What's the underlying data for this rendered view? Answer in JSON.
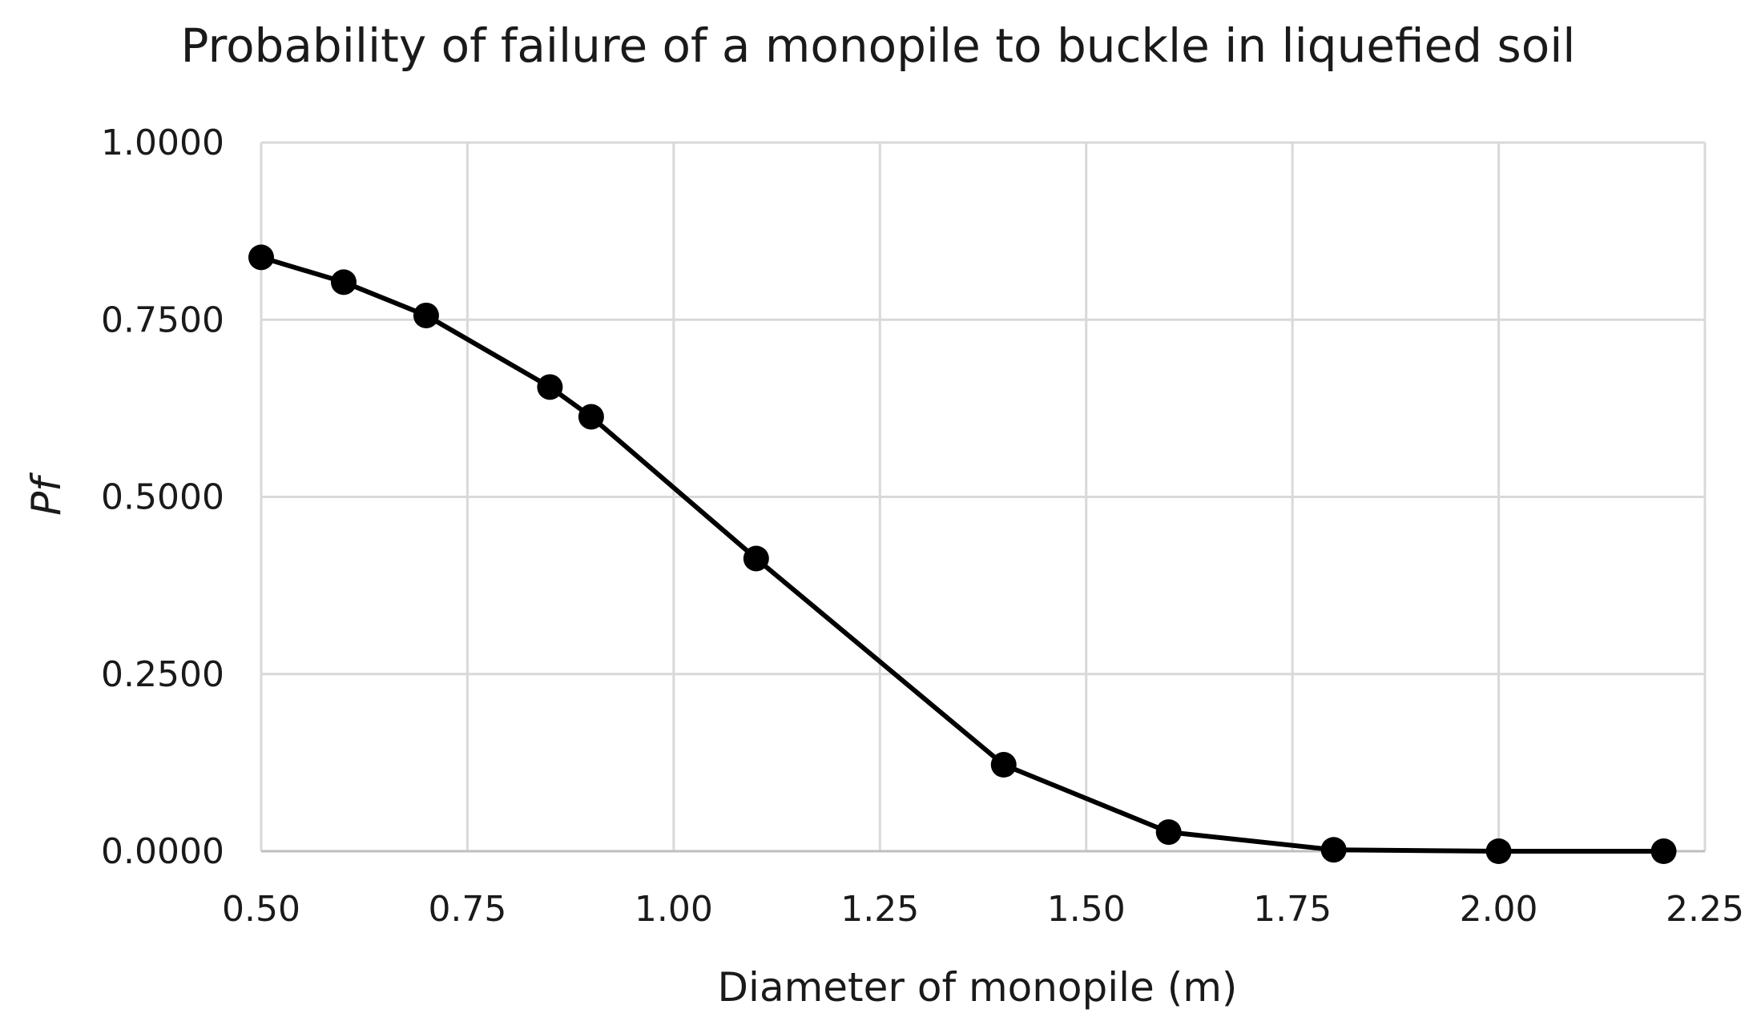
{
  "chart_data": {
    "type": "line",
    "title": "Probability of failure of a monopile to buckle in liquefied soil",
    "xlabel": "Diameter of monopile (m)",
    "ylabel": "Pf",
    "xlim": [
      0.5,
      2.25
    ],
    "ylim": [
      0,
      1
    ],
    "x_ticks": [
      "0.50",
      "0.75",
      "1.00",
      "1.25",
      "1.50",
      "1.75",
      "2.00",
      "2.25"
    ],
    "y_ticks": [
      "0.0000",
      "0.2500",
      "0.5000",
      "0.7500",
      "1.0000"
    ],
    "grid": true,
    "legend": "none",
    "series_color": "#000000",
    "series": [
      {
        "x": [
          0.5,
          0.6,
          0.7,
          0.85,
          0.9,
          1.1,
          1.4,
          1.6,
          1.8,
          2.0,
          2.2
        ],
        "y": [
          0.838,
          0.803,
          0.756,
          0.655,
          0.613,
          0.413,
          0.122,
          0.027,
          0.002,
          0.0,
          0.0
        ]
      }
    ]
  }
}
